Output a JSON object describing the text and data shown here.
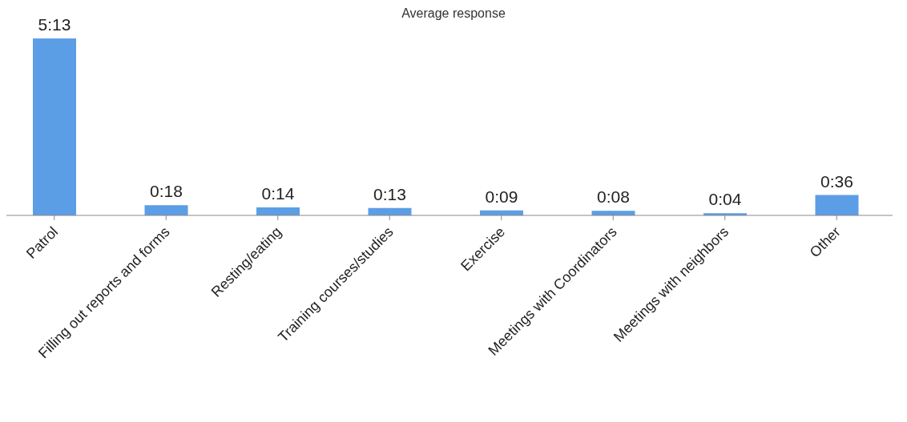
{
  "chart_data": {
    "type": "bar",
    "title": "Average response",
    "categories": [
      "Patrol",
      "Filling out reports and forms",
      "Resting/eating",
      "Training courses/studies",
      "Exercise",
      "Meetings with Coordinators",
      "Meetings with neighbors",
      "Other"
    ],
    "values": [
      313,
      18,
      14,
      13,
      9,
      8,
      4,
      36
    ],
    "value_labels": [
      "5:13",
      "0:18",
      "0:14",
      "0:13",
      "0:09",
      "0:08",
      "0:04",
      "0:36"
    ],
    "color": "#5c9ee6",
    "grid": false,
    "legend": false
  }
}
